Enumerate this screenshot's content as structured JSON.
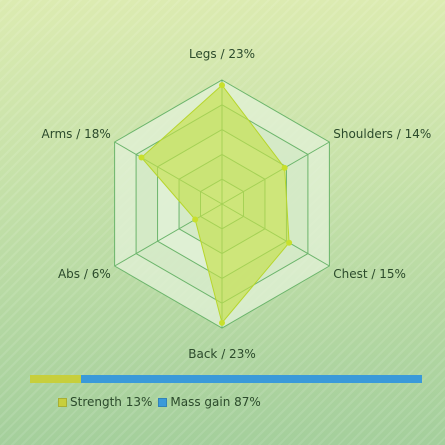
{
  "chart_data": {
    "type": "radar",
    "title": "",
    "axes": [
      {
        "name": "Legs",
        "value": 23,
        "label": "Legs / 23%"
      },
      {
        "name": "Shoulders",
        "value": 14,
        "label": "Shoulders / 14%"
      },
      {
        "name": "Chest",
        "value": 15,
        "label": "Chest / 15%"
      },
      {
        "name": "Back",
        "value": 23,
        "label": "Back / 23%"
      },
      {
        "name": "Abs",
        "value": 6,
        "label": "Abs / 6%"
      },
      {
        "name": "Arms",
        "value": 18,
        "label": "Arms / 18%"
      }
    ],
    "range": [
      0,
      24
    ],
    "rings": 5,
    "colors": {
      "fill": "#c4e04a",
      "stroke": "#b7d62d",
      "point": "#c8e02c",
      "grid": "#6bb56b",
      "grid_fill": "#e3f1d8"
    }
  },
  "split_bar": {
    "segments": [
      {
        "name": "Strength",
        "value": 13,
        "label": "Strength 13%",
        "color": "#c7cf3c"
      },
      {
        "name": "Mass gain",
        "value": 87,
        "label": "Mass gain 87%",
        "color": "#3a9ad9"
      }
    ]
  }
}
